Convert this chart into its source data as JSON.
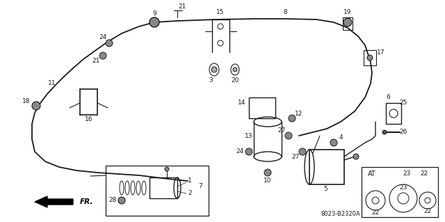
{
  "bg_color": "#ffffff",
  "fig_width": 6.4,
  "fig_height": 3.19,
  "dpi": 100,
  "line_color": "#1a1a1a",
  "text_color": "#1a1a1a",
  "fs": 6.5,
  "diagram_code": "8023-B2320A"
}
